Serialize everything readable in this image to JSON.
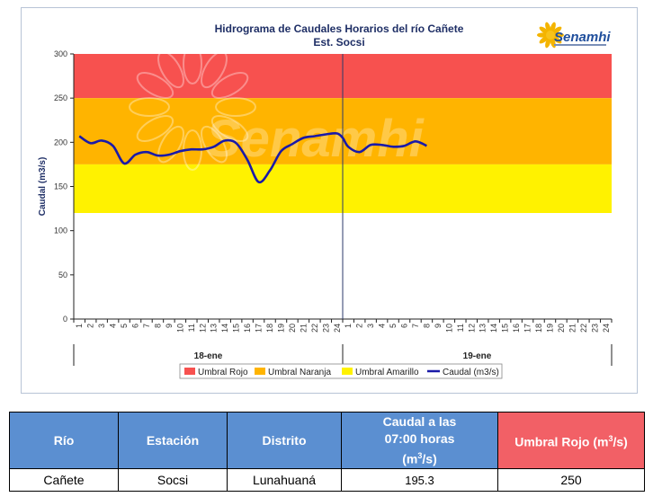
{
  "chart": {
    "title_line1": "Hidrograma de Caudales Horarios del río Cañete",
    "title_line2": "Est. Socsi",
    "logo_text": "Senamhi",
    "watermark": "Senamhi"
  },
  "chart_data": {
    "type": "line",
    "ylabel": "Caudal  (m3/s)",
    "ylim": [
      0,
      300
    ],
    "yticks": [
      "0",
      "50",
      "100",
      "150",
      "200",
      "250",
      "300"
    ],
    "xticks": [
      "1",
      "2",
      "3",
      "4",
      "5",
      "6",
      "7",
      "8",
      "9",
      "10",
      "11",
      "12",
      "13",
      "14",
      "15",
      "16",
      "17",
      "18",
      "19",
      "20",
      "21",
      "22",
      "23",
      "24",
      "1",
      "2",
      "3",
      "4",
      "5",
      "6",
      "7",
      "8",
      "9",
      "10",
      "11",
      "12",
      "13",
      "14",
      "15",
      "16",
      "17",
      "18",
      "19",
      "20",
      "21",
      "22",
      "23",
      "24"
    ],
    "days": [
      "18-ene",
      "19-ene"
    ],
    "thresholds": [
      {
        "name": "Umbral Rojo",
        "from": 250,
        "to": 300,
        "color": "#f7514f"
      },
      {
        "name": "Umbral Naranja",
        "from": 175,
        "to": 250,
        "color": "#ffb400"
      },
      {
        "name": "Umbral Amarillo",
        "from": 120,
        "to": 175,
        "color": "#fff200"
      }
    ],
    "series": [
      {
        "name": "Caudal (m3/s)",
        "color": "#1a1aa8",
        "x": [
          0,
          1,
          2,
          3,
          4,
          5,
          6,
          7,
          8,
          9,
          10,
          11,
          12,
          13,
          14,
          15,
          16,
          17,
          18,
          19,
          20,
          21,
          22,
          23,
          23.5,
          24,
          25,
          26,
          27,
          28,
          29,
          30,
          31
        ],
        "y": [
          207,
          199,
          202,
          196,
          176,
          186,
          189,
          185,
          186,
          190,
          192,
          192,
          195,
          202,
          199,
          180,
          155,
          168,
          190,
          198,
          205,
          207,
          209,
          210,
          205,
          195,
          189,
          197,
          197,
          195,
          196,
          201,
          196
        ]
      }
    ],
    "legend": [
      "Umbral Rojo",
      "Umbral Naranja",
      "Umbral Amarillo",
      "Caudal (m3/s)"
    ],
    "legend_position": "bottom"
  },
  "table": {
    "headers": {
      "rio": "Río",
      "estacion": "Estación",
      "distrito": "Distrito",
      "caudal_l1": "Caudal a las",
      "caudal_l2": "07:00 horas",
      "caudal_l3": "(m",
      "caudal_sup": "3",
      "caudal_l3_end": "/s)",
      "umbral": "Umbral Rojo (m",
      "umbral_sup": "3",
      "umbral_end": "/s)"
    },
    "row": {
      "rio": "Cañete",
      "estacion": "Socsi",
      "distrito": "Lunahuaná",
      "caudal": "195.3",
      "umbral": "250"
    },
    "colors": {
      "header_blue": "#5b8fd1",
      "header_red": "#f26066"
    }
  }
}
